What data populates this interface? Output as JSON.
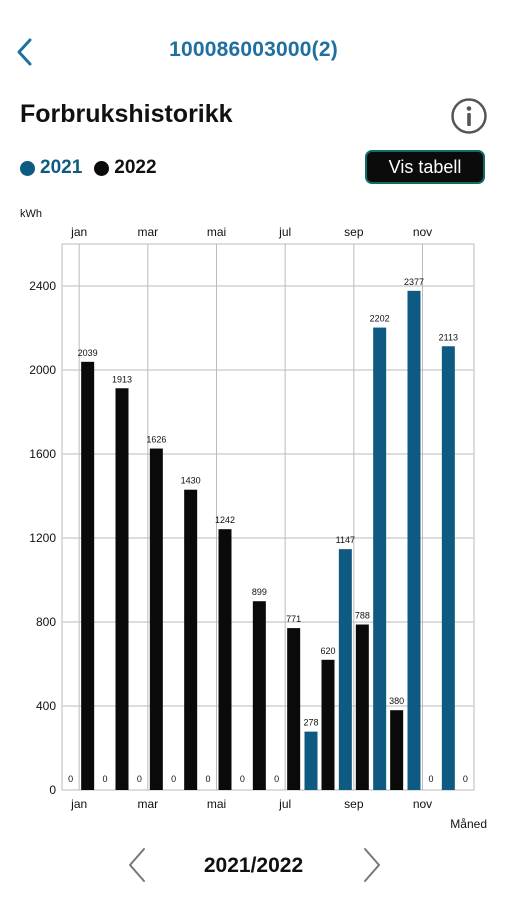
{
  "header": {
    "account_id": "100086003000(2)"
  },
  "page": {
    "title": "Forbrukshistorikk"
  },
  "legend": [
    {
      "label": "2021",
      "color": "#0e5a82"
    },
    {
      "label": "2022",
      "color": "#0a0a0a"
    }
  ],
  "actions": {
    "table_button_label": "Vis tabell"
  },
  "chart_data": {
    "type": "bar",
    "ylabel": "kWh",
    "xlabel": "Måned",
    "ylim": [
      0,
      2600
    ],
    "yticks": [
      0,
      400,
      800,
      1200,
      1600,
      2000,
      2400
    ],
    "month_labels": [
      "jan",
      "mar",
      "mai",
      "jul",
      "sep",
      "nov"
    ],
    "grid": true,
    "series": [
      {
        "name": "2021",
        "color": "#0e5a82",
        "values": [
          0,
          0,
          0,
          0,
          0,
          0,
          0,
          278,
          1147,
          2202,
          2377,
          2113
        ]
      },
      {
        "name": "2022",
        "color": "#0a0a0a",
        "values": [
          2039,
          1913,
          1626,
          1430,
          1242,
          899,
          771,
          620,
          788,
          380,
          0,
          0
        ]
      }
    ]
  },
  "navigation": {
    "period": "2021/2022"
  },
  "icons": {
    "back": "chevron-left-icon",
    "info": "info-icon",
    "prev": "chevron-left-icon",
    "next": "chevron-right-icon"
  }
}
